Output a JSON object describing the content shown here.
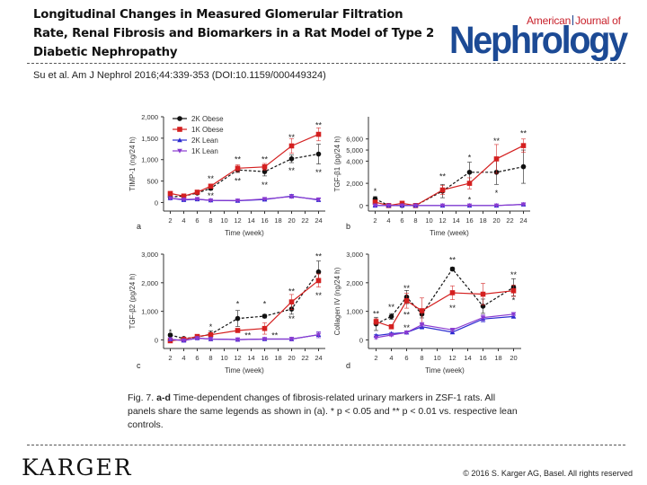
{
  "header": {
    "title": "Longitudinal Changes in Measured Glomerular Filtration Rate, Renal Fibrosis and Biomarkers in a Rat Model of Type 2 Diabetic Nephropathy",
    "citation": "Su et al. Am J Nephrol 2016;44:339-353 (DOI:10.1159/000449324)",
    "journal_logo": {
      "top_line_left": "American",
      "top_line_right": "Journal of",
      "main": "Nephrology"
    }
  },
  "caption": {
    "fig_label": "Fig. 7.",
    "panels_label": "a-d",
    "text": "Time-dependent changes of fibrosis-related urinary markers in ZSF-1 rats. All panels share the same legends as shown in (a). * p < 0.05 and ** p < 0.01 vs. respective lean controls."
  },
  "footer": {
    "publisher": "KARGER",
    "copyright": "© 2016 S. Karger AG, Basel. All rights reserved"
  },
  "colors": {
    "2K Obese": "#111111",
    "1K Obese": "#d42020",
    "2K Lean": "#2a2ad0",
    "1K Lean": "#8a3ad0"
  },
  "chart_data": [
    {
      "panel": "a",
      "type": "line",
      "title": "",
      "xlabel": "Time (week)",
      "ylabel": "TIMP-1 (ng/24 h)",
      "x_ticks": [
        2,
        4,
        6,
        8,
        10,
        12,
        14,
        16,
        18,
        20,
        22,
        24
      ],
      "y_ticks": [
        0,
        500,
        1000,
        1500,
        2000
      ],
      "y_tick_labels": [
        "0",
        "500",
        "1,000",
        "1,500",
        "2,000"
      ],
      "ylim": [
        -200,
        2000
      ],
      "xlim": [
        1,
        25
      ],
      "legend": {
        "placement": "top-left",
        "entries": [
          "2K Obese",
          "1K Obese",
          "2K Lean",
          "1K Lean"
        ]
      },
      "x": [
        2,
        4,
        6,
        8,
        12,
        16,
        20,
        24
      ],
      "series": [
        {
          "name": "2K Obese",
          "values": [
            130,
            150,
            220,
            330,
            760,
            720,
            1020,
            1130
          ],
          "errors": [
            30,
            20,
            30,
            40,
            60,
            100,
            90,
            230
          ]
        },
        {
          "name": "1K Obese",
          "values": [
            210,
            150,
            240,
            380,
            800,
            830,
            1320,
            1590
          ],
          "errors": [
            40,
            30,
            30,
            50,
            80,
            80,
            170,
            150
          ]
        },
        {
          "name": "2K Lean",
          "values": [
            100,
            60,
            75,
            50,
            40,
            70,
            150,
            60
          ],
          "errors": [
            20,
            20,
            20,
            10,
            10,
            20,
            40,
            30
          ]
        },
        {
          "name": "1K Lean",
          "values": [
            100,
            70,
            80,
            50,
            45,
            80,
            140,
            70
          ],
          "errors": [
            20,
            20,
            20,
            10,
            10,
            20,
            40,
            30
          ]
        }
      ],
      "annotations": [
        {
          "x": 8,
          "y": 550,
          "text": "**"
        },
        {
          "x": 8,
          "y": 160,
          "text": "**"
        },
        {
          "x": 12,
          "y": 1000,
          "text": "**"
        },
        {
          "x": 12,
          "y": 500,
          "text": "**"
        },
        {
          "x": 16,
          "y": 1000,
          "text": "**"
        },
        {
          "x": 16,
          "y": 410,
          "text": "**"
        },
        {
          "x": 20,
          "y": 1520,
          "text": "**"
        },
        {
          "x": 20,
          "y": 740,
          "text": "**"
        },
        {
          "x": 24,
          "y": 1800,
          "text": "**"
        },
        {
          "x": 24,
          "y": 700,
          "text": "**"
        }
      ]
    },
    {
      "panel": "b",
      "type": "line",
      "title": "",
      "xlabel": "Time (week)",
      "ylabel": "TGF-β1 (pg/24 h)",
      "x_ticks": [
        2,
        4,
        6,
        8,
        10,
        12,
        14,
        16,
        18,
        20,
        22,
        24
      ],
      "y_ticks": [
        0,
        2000,
        4000,
        5000,
        6000
      ],
      "y_tick_labels": [
        "0",
        "2,000",
        "4,000",
        "5,000",
        "6,000"
      ],
      "ylim": [
        -500,
        8000
      ],
      "xlim": [
        1,
        25
      ],
      "x": [
        2,
        4,
        6,
        8,
        12,
        16,
        20,
        24
      ],
      "series": [
        {
          "name": "2K Obese",
          "values": [
            600,
            0,
            0,
            0,
            1300,
            3000,
            3000,
            3500
          ],
          "errors": [
            200,
            50,
            50,
            50,
            600,
            900,
            1100,
            1500
          ]
        },
        {
          "name": "1K Obese",
          "values": [
            300,
            0,
            200,
            0,
            1400,
            2000,
            4200,
            5400
          ],
          "errors": [
            200,
            50,
            100,
            50,
            400,
            500,
            1300,
            600
          ]
        },
        {
          "name": "2K Lean",
          "values": [
            0,
            0,
            0,
            0,
            0,
            0,
            0,
            100
          ],
          "errors": [
            50,
            30,
            30,
            30,
            30,
            30,
            30,
            50
          ]
        },
        {
          "name": "1K Lean",
          "values": [
            0,
            0,
            0,
            0,
            0,
            0,
            0,
            100
          ],
          "errors": [
            50,
            30,
            30,
            30,
            30,
            30,
            30,
            50
          ]
        }
      ],
      "annotations": [
        {
          "x": 2,
          "y": 1300,
          "text": "*"
        },
        {
          "x": 12,
          "y": 2600,
          "text": "**"
        },
        {
          "x": 16,
          "y": 4300,
          "text": "*"
        },
        {
          "x": 16,
          "y": 500,
          "text": "*"
        },
        {
          "x": 20,
          "y": 5800,
          "text": "**"
        },
        {
          "x": 20,
          "y": 1100,
          "text": "*"
        },
        {
          "x": 24,
          "y": 6500,
          "text": "**"
        }
      ]
    },
    {
      "panel": "c",
      "type": "line",
      "title": "",
      "xlabel": "Time (week)",
      "ylabel": "TGF-β2 (pg/24 h)",
      "x_ticks": [
        2,
        4,
        6,
        8,
        10,
        12,
        14,
        16,
        18,
        20,
        22,
        24
      ],
      "y_ticks": [
        0,
        1000,
        2000,
        3000
      ],
      "y_tick_labels": [
        "0",
        "1,000",
        "2,000",
        "3,000"
      ],
      "ylim": [
        -300,
        3000
      ],
      "xlim": [
        1,
        25
      ],
      "x": [
        2,
        4,
        6,
        8,
        12,
        16,
        20,
        24
      ],
      "series": [
        {
          "name": "2K Obese",
          "values": [
            170,
            50,
            100,
            200,
            750,
            830,
            1080,
            2380
          ],
          "errors": [
            50,
            30,
            30,
            120,
            280,
            60,
            180,
            380
          ]
        },
        {
          "name": "1K Obese",
          "values": [
            -30,
            20,
            120,
            180,
            330,
            400,
            1330,
            2080
          ],
          "errors": [
            60,
            30,
            40,
            60,
            60,
            200,
            260,
            230
          ]
        },
        {
          "name": "2K Lean",
          "values": [
            20,
            -20,
            60,
            30,
            10,
            30,
            30,
            180
          ],
          "errors": [
            50,
            30,
            40,
            60,
            60,
            30,
            60,
            100
          ]
        },
        {
          "name": "1K Lean",
          "values": [
            20,
            -20,
            60,
            30,
            10,
            30,
            30,
            180
          ],
          "errors": [
            50,
            30,
            40,
            60,
            60,
            30,
            60,
            100
          ]
        }
      ],
      "annotations": [
        {
          "x": 2,
          "y": 260,
          "text": "*"
        },
        {
          "x": 8,
          "y": 460,
          "text": "*"
        },
        {
          "x": 12,
          "y": 1260,
          "text": "*"
        },
        {
          "x": 13.5,
          "y": 150,
          "text": "**"
        },
        {
          "x": 16,
          "y": 1250,
          "text": "*"
        },
        {
          "x": 17.5,
          "y": 150,
          "text": "**"
        },
        {
          "x": 20,
          "y": 1700,
          "text": "**"
        },
        {
          "x": 20,
          "y": 730,
          "text": "**"
        },
        {
          "x": 24,
          "y": 2920,
          "text": "**"
        },
        {
          "x": 24,
          "y": 1550,
          "text": "**"
        }
      ]
    },
    {
      "panel": "d",
      "type": "line",
      "title": "",
      "xlabel": "Time (week)",
      "ylabel": "Collagen IV (ng/24 h)",
      "x_ticks": [
        2,
        4,
        6,
        8,
        10,
        12,
        14,
        16,
        18,
        20
      ],
      "y_ticks": [
        0,
        1000,
        2000,
        3000
      ],
      "y_tick_labels": [
        "0",
        "1,000",
        "2,000",
        "3,000"
      ],
      "ylim": [
        -300,
        3000
      ],
      "xlim": [
        1,
        21
      ],
      "x": [
        2,
        4,
        6,
        8,
        12,
        16,
        20
      ],
      "series": [
        {
          "name": "2K Obese",
          "values": [
            560,
            820,
            1500,
            900,
            2480,
            1180,
            1840
          ],
          "errors": [
            230,
            100,
            230,
            130,
            60,
            250,
            300
          ]
        },
        {
          "name": "1K Obese",
          "values": [
            640,
            460,
            1370,
            1020,
            1650,
            1600,
            1720
          ],
          "errors": [
            100,
            50,
            260,
            450,
            240,
            380,
            200
          ]
        },
        {
          "name": "2K Lean",
          "values": [
            150,
            220,
            260,
            460,
            270,
            730,
            820
          ],
          "errors": [
            40,
            40,
            40,
            80,
            60,
            100,
            60
          ]
        },
        {
          "name": "1K Lean",
          "values": [
            80,
            170,
            260,
            530,
            350,
            780,
            900
          ],
          "errors": [
            40,
            40,
            40,
            80,
            60,
            100,
            60
          ]
        }
      ],
      "annotations": [
        {
          "x": 2,
          "y": 910,
          "text": "**"
        },
        {
          "x": 4,
          "y": 1150,
          "text": "**"
        },
        {
          "x": 6,
          "y": 1810,
          "text": "**"
        },
        {
          "x": 6,
          "y": 880,
          "text": "**"
        },
        {
          "x": 6,
          "y": 420,
          "text": "**"
        },
        {
          "x": 12,
          "y": 2800,
          "text": "**"
        },
        {
          "x": 12,
          "y": 1120,
          "text": "**"
        },
        {
          "x": 20,
          "y": 2270,
          "text": "**"
        },
        {
          "x": 20,
          "y": 1380,
          "text": "*"
        }
      ]
    }
  ]
}
